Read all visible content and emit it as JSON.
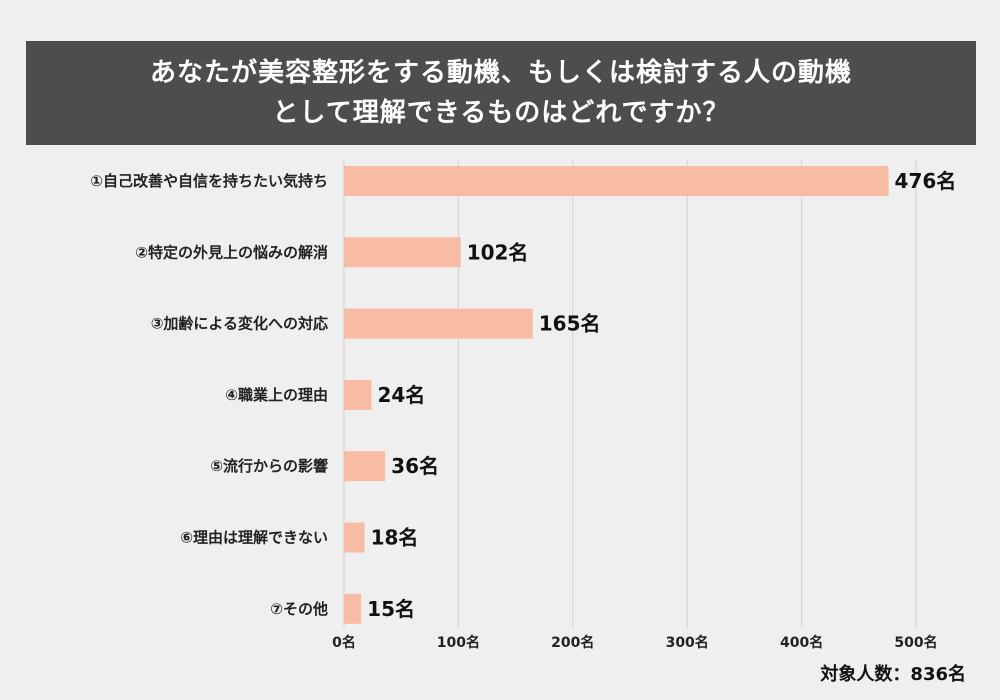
{
  "title_lines": [
    "あなたが美容整形をする動機、もしくは検討する人の動機",
    "として理解できるものはどれですか？"
  ],
  "chart_data": {
    "type": "bar",
    "orientation": "horizontal",
    "categories": [
      "①自己改善や自信を持ちたい気持ち",
      "②特定の外見上の悩みの解消",
      "③加齢による変化への対応",
      "④職業上の理由",
      "⑤流行からの影響",
      "⑥理由は理解できない",
      "⑦その他"
    ],
    "values": [
      476,
      102,
      165,
      24,
      36,
      18,
      15
    ],
    "value_labels": [
      "476名",
      "102名",
      "165名",
      "24名",
      "36名",
      "18名",
      "15名"
    ],
    "xlim": [
      0,
      500
    ],
    "xticks": [
      0,
      100,
      200,
      300,
      400,
      500
    ],
    "xtick_labels": [
      "0名",
      "100名",
      "200名",
      "300名",
      "400名",
      "500名"
    ],
    "grid": true,
    "bar_color": "#f8bba4",
    "grid_color": "#d2d2d2"
  },
  "footnote": "対象人数：836名"
}
